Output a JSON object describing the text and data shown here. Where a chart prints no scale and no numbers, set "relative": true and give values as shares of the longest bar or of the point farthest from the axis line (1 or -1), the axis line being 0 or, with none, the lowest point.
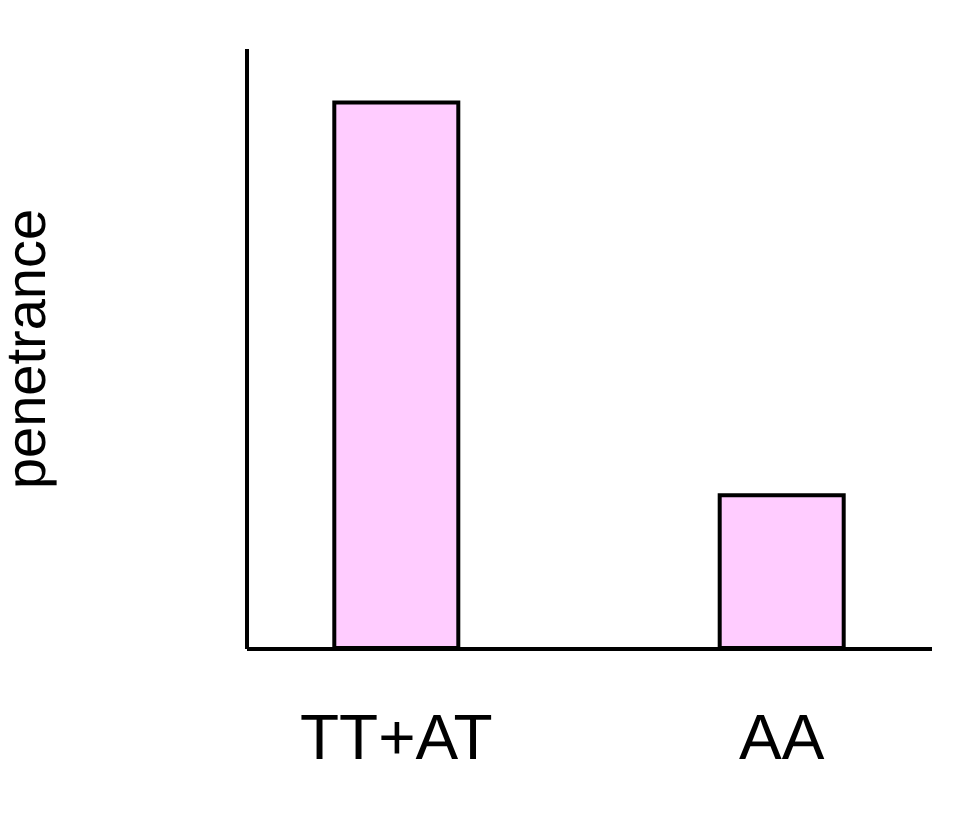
{
  "chart_data": {
    "type": "bar",
    "ylabel": "penetrance",
    "categories": [
      "TT+AT",
      "AA"
    ],
    "values": [
      1,
      0.28
    ],
    "color": "#ffccff",
    "relative": true,
    "grid": false
  }
}
